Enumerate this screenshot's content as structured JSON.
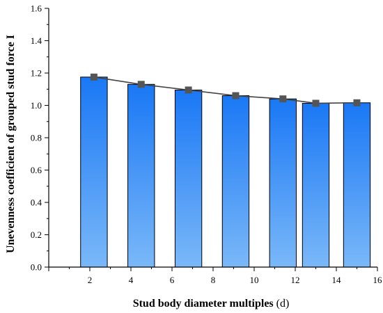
{
  "chart_data": {
    "type": "bar",
    "xlabel": "Stud body diameter multiples",
    "xlabel_unit": "(d)",
    "ylabel": "Unevenness coefficient of grouped stud force I",
    "xlim": [
      0,
      16
    ],
    "ylim": [
      0,
      1.6
    ],
    "xticks": [
      "2",
      "4",
      "6",
      "8",
      "10",
      "12",
      "14",
      "16"
    ],
    "yticks": [
      "0.0",
      "0.2",
      "0.4",
      "0.6",
      "0.8",
      "1.0",
      "1.2",
      "1.4",
      "1.6"
    ],
    "x": [
      2.2,
      4.5,
      6.8,
      9.1,
      11.4,
      13.0,
      15.0
    ],
    "values": [
      1.175,
      1.13,
      1.095,
      1.06,
      1.04,
      1.013,
      1.016
    ],
    "bar_width": 1.3,
    "line_series": true,
    "grid": false,
    "colors": {
      "bar_top": "#1a78f5",
      "bar_bottom": "#7ab8f8",
      "bar_edge": "#000000",
      "line": "#444444",
      "marker": "#555555"
    }
  }
}
